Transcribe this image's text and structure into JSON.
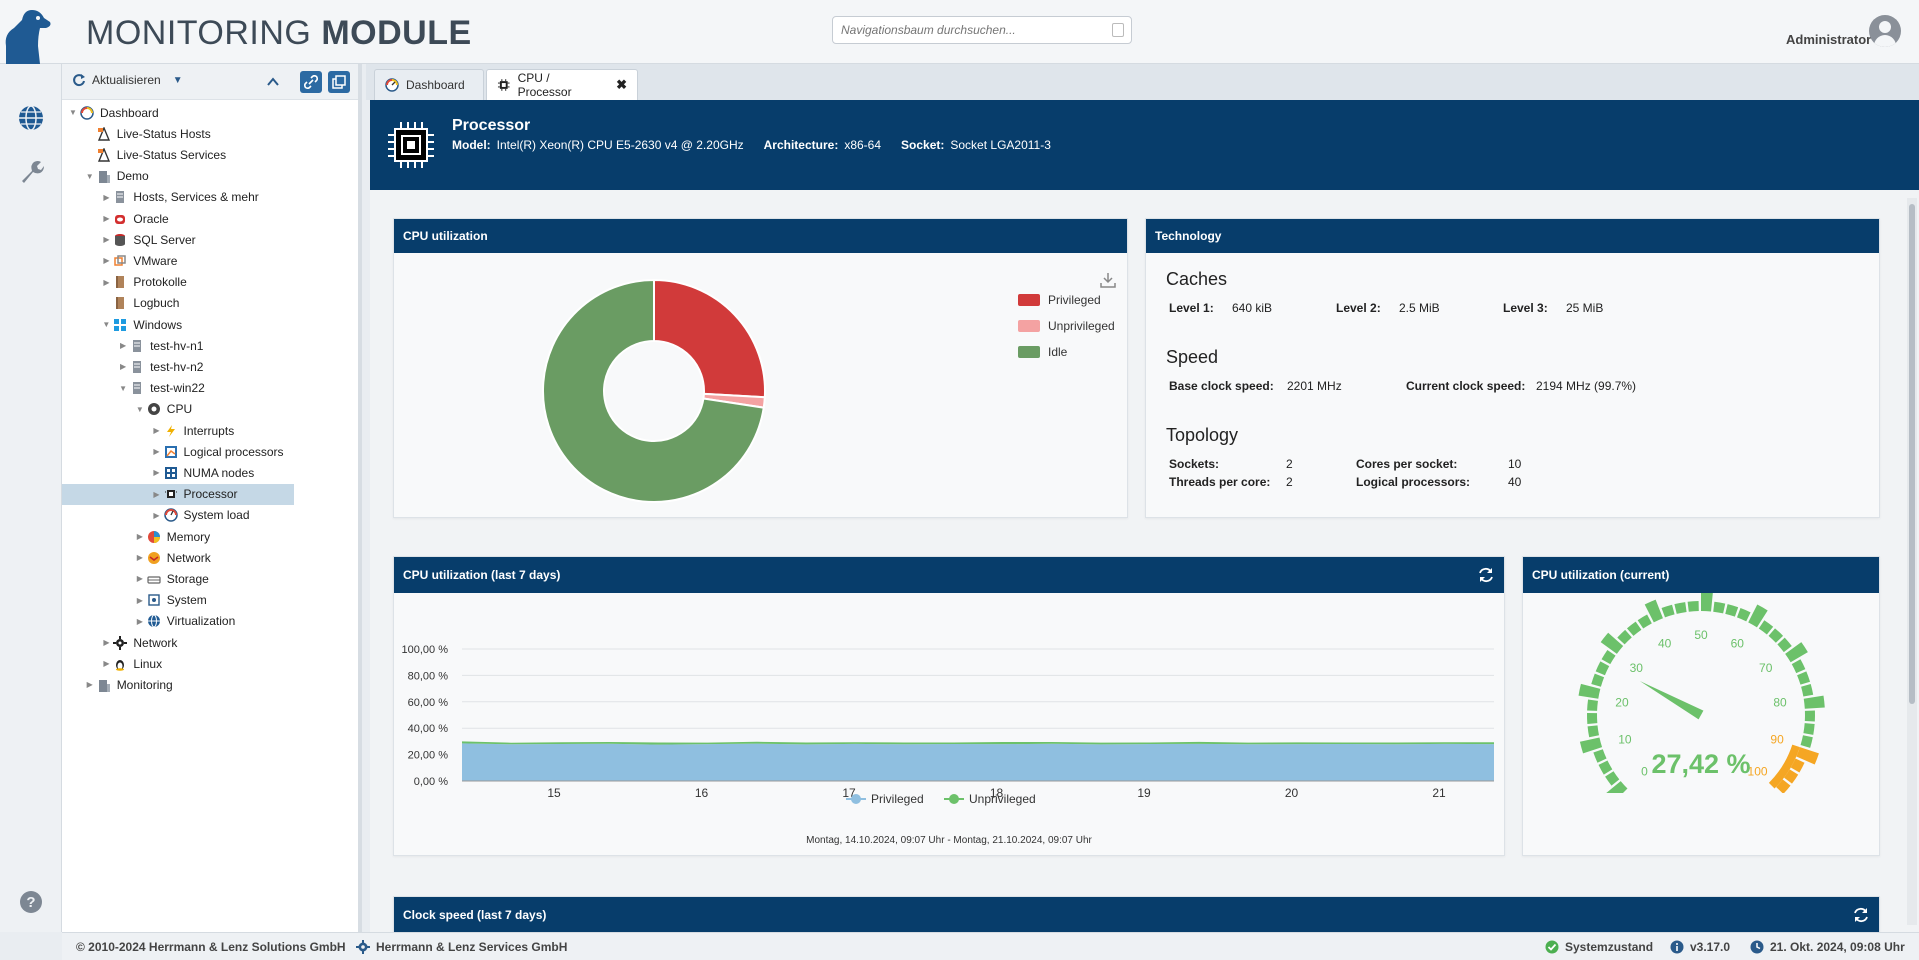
{
  "header": {
    "title_light": "MONITORING",
    "title_bold": "MODULE",
    "search_placeholder": "Navigationsbaum durchsuchen...",
    "user": "Administrator"
  },
  "tree_toolbar": {
    "refresh_label": "Aktualisieren"
  },
  "tree": [
    {
      "label": "Dashboard",
      "level": 0,
      "toggle": "open",
      "icon": "dashboard-icon"
    },
    {
      "label": "Live-Status Hosts",
      "level": 1,
      "toggle": "none",
      "icon": "live-status-icon"
    },
    {
      "label": "Live-Status Services",
      "level": 1,
      "toggle": "none",
      "icon": "live-status-icon"
    },
    {
      "label": "Demo",
      "level": 1,
      "toggle": "open",
      "icon": "building-icon"
    },
    {
      "label": "Hosts, Services & mehr",
      "level": 2,
      "toggle": "closed",
      "icon": "server-icon"
    },
    {
      "label": "Oracle",
      "level": 2,
      "toggle": "closed",
      "icon": "oracle-icon"
    },
    {
      "label": "SQL Server",
      "level": 2,
      "toggle": "closed",
      "icon": "sql-server-icon"
    },
    {
      "label": "VMware",
      "level": 2,
      "toggle": "closed",
      "icon": "vmware-icon"
    },
    {
      "label": "Protokolle",
      "level": 2,
      "toggle": "closed",
      "icon": "book-icon"
    },
    {
      "label": "Logbuch",
      "level": 2,
      "toggle": "none",
      "icon": "book-icon"
    },
    {
      "label": "Windows",
      "level": 2,
      "toggle": "open",
      "icon": "windows-icon"
    },
    {
      "label": "test-hv-n1",
      "level": 3,
      "toggle": "closed",
      "icon": "server-icon"
    },
    {
      "label": "test-hv-n2",
      "level": 3,
      "toggle": "closed",
      "icon": "server-icon"
    },
    {
      "label": "test-win22",
      "level": 3,
      "toggle": "open",
      "icon": "server-icon"
    },
    {
      "label": "CPU",
      "level": 4,
      "toggle": "open",
      "icon": "cpu-icon"
    },
    {
      "label": "Interrupts",
      "level": 5,
      "toggle": "closed",
      "icon": "lightning-icon"
    },
    {
      "label": "Logical processors",
      "level": 5,
      "toggle": "closed",
      "icon": "logical-processors-icon"
    },
    {
      "label": "NUMA nodes",
      "level": 5,
      "toggle": "closed",
      "icon": "numa-icon"
    },
    {
      "label": "Processor",
      "level": 5,
      "toggle": "closed",
      "icon": "processor-icon",
      "selected": true
    },
    {
      "label": "System load",
      "level": 5,
      "toggle": "closed",
      "icon": "gauge-icon"
    },
    {
      "label": "Memory",
      "level": 4,
      "toggle": "closed",
      "icon": "memory-icon"
    },
    {
      "label": "Network",
      "level": 4,
      "toggle": "closed",
      "icon": "network-icon"
    },
    {
      "label": "Storage",
      "level": 4,
      "toggle": "closed",
      "icon": "storage-icon"
    },
    {
      "label": "System",
      "level": 4,
      "toggle": "closed",
      "icon": "system-icon"
    },
    {
      "label": "Virtualization",
      "level": 4,
      "toggle": "closed",
      "icon": "virtualization-icon"
    },
    {
      "label": "Network",
      "level": 2,
      "toggle": "closed",
      "icon": "network-gear-icon"
    },
    {
      "label": "Linux",
      "level": 2,
      "toggle": "closed",
      "icon": "linux-icon"
    },
    {
      "label": "Monitoring",
      "level": 1,
      "toggle": "closed",
      "icon": "building-icon"
    }
  ],
  "tabs": [
    {
      "label": "Dashboard"
    },
    {
      "label": "CPU / Processor",
      "close": "✖"
    }
  ],
  "processor": {
    "title": "Processor",
    "model_label": "Model:",
    "model": "Intel(R) Xeon(R) CPU E5-2630 v4 @ 2.20GHz",
    "arch_label": "Architecture:",
    "arch": "x86-64",
    "socket_label": "Socket:",
    "socket": "Socket LGA2011-3"
  },
  "cpu_util_card": {
    "title": "CPU utilization"
  },
  "technology": {
    "title": "Technology",
    "caches_heading": "Caches",
    "l1_label": "Level 1:",
    "l1": "640 kiB",
    "l2_label": "Level 2:",
    "l2": "2.5 MiB",
    "l3_label": "Level 3:",
    "l3": "25 MiB",
    "speed_heading": "Speed",
    "base_label": "Base clock speed:",
    "base": "2201 MHz",
    "current_label": "Current clock speed:",
    "current": "2194 MHz (99.7%)",
    "topology_heading": "Topology",
    "sockets_label": "Sockets:",
    "sockets": "2",
    "cores_label": "Cores per socket:",
    "cores": "10",
    "threads_label": "Threads per core:",
    "threads": "2",
    "logical_label": "Logical processors:",
    "logical": "40"
  },
  "week_card": {
    "title": "CPU utilization (last 7 days)",
    "range_text": "Montag, 14.10.2024, 09:07 Uhr - Montag, 21.10.2024, 09:07 Uhr"
  },
  "gauge_card": {
    "title": "CPU utilization (current)"
  },
  "clock_card": {
    "title": "Clock speed (last 7 days)"
  },
  "footer": {
    "copyright": "© 2010-2024 Herrmann & Lenz Solutions GmbH",
    "services": "Herrmann & Lenz Services GmbH",
    "status": "Systemzustand",
    "version": "v3.17.0",
    "datetime": "21. Okt. 2024, 09:08 Uhr"
  },
  "colors": {
    "navy": "#073d6b",
    "privileged_pie": "#d13a3a",
    "unprivileged_pie": "#f4a2a2",
    "idle_pie": "#6a9c63",
    "area_privileged": "#8fbfe0",
    "area_unprivileged": "#6cc16a",
    "gauge_green": "#6cc16a",
    "gauge_orange": "#f5a623"
  },
  "chart_data": [
    {
      "type": "pie",
      "title": "CPU utilization",
      "donut": true,
      "labels": [
        "Privileged",
        "Unprivileged",
        "Idle"
      ],
      "values": [
        25.9,
        1.5,
        72.6
      ],
      "legend_position": "top-right"
    },
    {
      "type": "area",
      "title": "CPU utilization (last 7 days)",
      "x_ticks": [
        "15",
        "16",
        "17",
        "18",
        "19",
        "20",
        "21"
      ],
      "y_ticks": [
        "0,00 %",
        "20,00 %",
        "40,00 %",
        "60,00 %",
        "80,00 %",
        "100,00 %"
      ],
      "ylim": [
        0,
        100
      ],
      "stacked": true,
      "grid": true,
      "legend_position": "bottom",
      "series": [
        {
          "name": "Privileged",
          "values": [
            28.5,
            27.8,
            28.0,
            28.2,
            27.6,
            27.9,
            28.3,
            27.7,
            28.1,
            27.8,
            28.0,
            27.9,
            28.2,
            27.7,
            28.0,
            28.1,
            27.8,
            27.9,
            28.0,
            27.8,
            28.1,
            27.9
          ]
        },
        {
          "name": "Unprivileged",
          "values": [
            1.5,
            1.2,
            1.4,
            1.3,
            1.6,
            1.2,
            1.4,
            1.5,
            1.3,
            1.4,
            1.2,
            1.6,
            1.3,
            1.4,
            1.2,
            1.5,
            1.3,
            1.4,
            1.2,
            1.4,
            1.3,
            1.5
          ]
        }
      ]
    },
    {
      "type": "gauge",
      "title": "CPU utilization (current)",
      "value": 27.42,
      "value_text": "27,42 %",
      "min": 0,
      "max": 100,
      "tick_labels": [
        "0",
        "10",
        "20",
        "30",
        "40",
        "50",
        "60",
        "70",
        "80",
        "90",
        "100"
      ],
      "warning_from": 90
    }
  ]
}
